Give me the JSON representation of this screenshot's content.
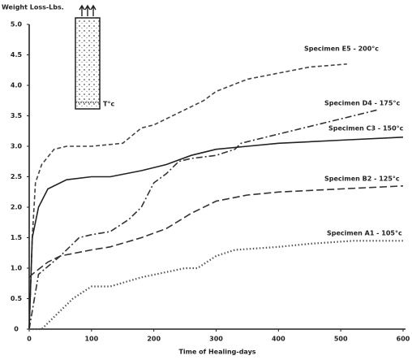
{
  "chart_data": {
    "type": "line",
    "y_label": "Weight Loss-Lbs.",
    "x_label": "Time of Healing-days",
    "inset_label": "T°c",
    "xlim": [
      0,
      600
    ],
    "xticks": [
      0,
      100,
      200,
      300,
      400,
      500,
      600
    ],
    "ylim": [
      0,
      5
    ],
    "yticks": [
      0,
      {
        "value": 0.5,
        "label": "0.5"
      },
      {
        "value": 1,
        "label": "1.0"
      },
      {
        "value": 1.5,
        "label": "1.5"
      },
      {
        "value": 2,
        "label": "2.0"
      },
      {
        "value": 2.5,
        "label": "2.5"
      },
      {
        "value": 3,
        "label": "3.0"
      },
      {
        "value": 3.5,
        "label": "3.5"
      },
      {
        "value": 4,
        "label": "4.0"
      },
      {
        "value": 4.5,
        "label": "4.5"
      },
      {
        "value": 5,
        "label": "5.0"
      }
    ],
    "series": [
      {
        "name": "Specimen E5 - 200°c",
        "color": "#444",
        "dash": "dashed",
        "x": [
          0,
          5,
          10,
          20,
          40,
          60,
          100,
          150,
          180,
          200,
          230,
          250,
          280,
          300,
          350,
          400,
          450,
          510
        ],
        "values": [
          0,
          1.5,
          2.4,
          2.7,
          2.95,
          3.0,
          3.0,
          3.05,
          3.3,
          3.35,
          3.5,
          3.6,
          3.75,
          3.9,
          4.1,
          4.2,
          4.3,
          4.35
        ]
      },
      {
        "name": "Specimen D4 - 175°c",
        "color": "#333",
        "dash": "dashdot",
        "x": [
          0,
          15,
          50,
          80,
          100,
          130,
          160,
          180,
          200,
          220,
          240,
          260,
          300,
          330,
          340,
          400,
          500,
          560
        ],
        "values": [
          0,
          0.9,
          1.2,
          1.5,
          1.55,
          1.6,
          1.8,
          2.0,
          2.4,
          2.55,
          2.75,
          2.8,
          2.85,
          2.95,
          3.05,
          3.2,
          3.45,
          3.6
        ]
      },
      {
        "name": "Specimen C3 - 150°c",
        "color": "#222",
        "dash": "solid",
        "x": [
          0,
          5,
          15,
          30,
          60,
          100,
          130,
          180,
          220,
          260,
          300,
          350,
          400,
          500,
          600
        ],
        "values": [
          0,
          1.5,
          2.0,
          2.3,
          2.45,
          2.5,
          2.5,
          2.6,
          2.7,
          2.85,
          2.95,
          3.0,
          3.05,
          3.1,
          3.15
        ]
      },
      {
        "name": "Specimen B2 - 125°c",
        "color": "#333",
        "dash": "longdash",
        "x": [
          0,
          5,
          30,
          50,
          100,
          130,
          180,
          220,
          260,
          300,
          350,
          400,
          500,
          600
        ],
        "values": [
          0.85,
          0.9,
          1.1,
          1.2,
          1.3,
          1.35,
          1.5,
          1.65,
          1.9,
          2.1,
          2.2,
          2.25,
          2.3,
          2.35
        ]
      },
      {
        "name": "Specimen A1 - 105°c",
        "color": "#555",
        "dash": "dotted",
        "x": [
          0,
          20,
          40,
          70,
          100,
          130,
          180,
          250,
          270,
          300,
          330,
          400,
          450,
          520,
          600
        ],
        "values": [
          0,
          0,
          0.2,
          0.5,
          0.7,
          0.7,
          0.85,
          1.0,
          1.0,
          1.2,
          1.3,
          1.35,
          1.4,
          1.45,
          1.45
        ]
      }
    ]
  }
}
